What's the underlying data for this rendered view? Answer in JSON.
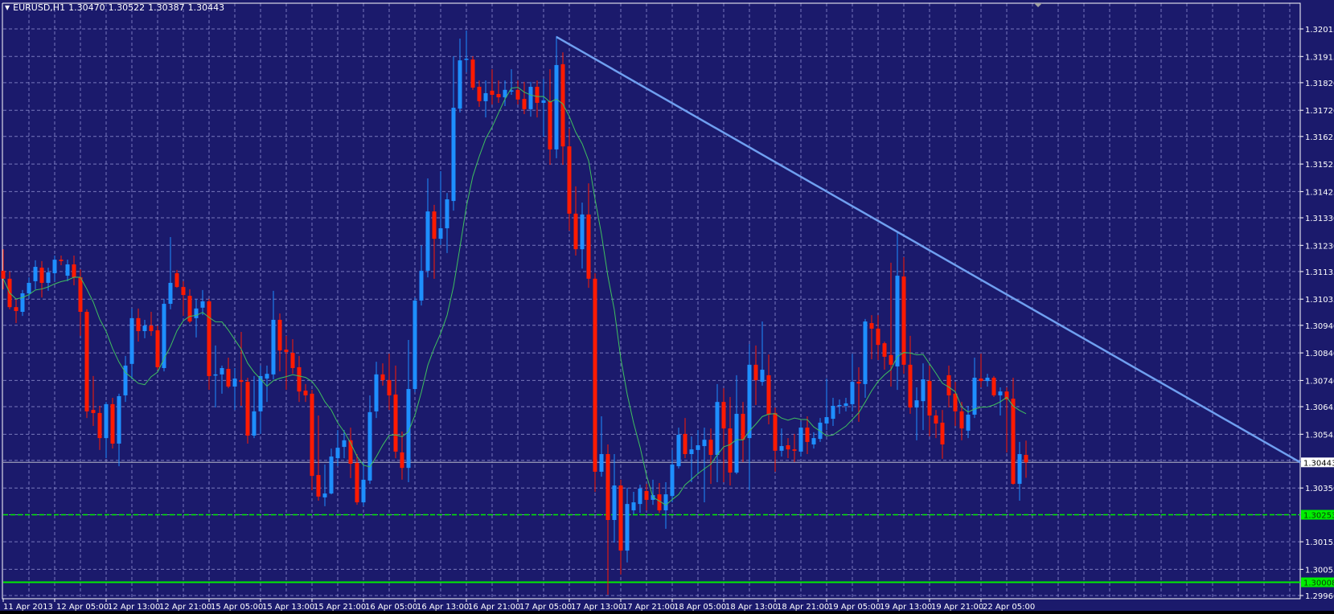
{
  "header": {
    "menu_icon": "triangle-down-icon",
    "symbol": "EURUSD,H1",
    "open": "1.30470",
    "high": "1.30522",
    "low": "1.30387",
    "close": "1.30443"
  },
  "colors": {
    "background": "#1b1a6c",
    "grid": "#8f8fcf",
    "bull": "#1e8fff",
    "bear": "#ff1a00",
    "moving_average": "#3fbf5f",
    "trendline": "#6f9ff0",
    "bid_line": "#b8b8c8",
    "level_line": "#00ee00",
    "axis": "#ffffff"
  },
  "chart_data": {
    "type": "candlestick",
    "symbol": "EURUSD",
    "timeframe": "H1",
    "grid": true,
    "ylim": [
      1.2996,
      1.32015
    ],
    "x_tick_labels": [
      "11 Apr 2013",
      "12 Apr 05:00",
      "12 Apr 13:00",
      "12 Apr 21:00",
      "15 Apr 05:00",
      "15 Apr 13:00",
      "15 Apr 21:00",
      "16 Apr 05:00",
      "16 Apr 13:00",
      "16 Apr 21:00",
      "17 Apr 05:00",
      "17 Apr 13:00",
      "17 Apr 21:00",
      "18 Apr 05:00",
      "18 Apr 13:00",
      "18 Apr 21:00",
      "19 Apr 05:00",
      "19 Apr 13:00",
      "19 Apr 21:00",
      "22 Apr 05:00"
    ],
    "y_tick_labels": [
      "1.32015",
      "1.31915",
      "1.31820",
      "1.31720",
      "1.31625",
      "1.31525",
      "1.31425",
      "1.31330",
      "1.31230",
      "1.31135",
      "1.31035",
      "1.30940",
      "1.30840",
      "1.30740",
      "1.30645",
      "1.30545",
      "1.30350",
      "1.30155",
      "1.30055",
      "1.29960"
    ],
    "candle_fields": [
      "open",
      "high",
      "low",
      "close"
    ],
    "candles": [
      [
        1.31138,
        1.31216,
        1.31071,
        1.31109
      ],
      [
        1.31109,
        1.31135,
        1.30998,
        1.31006
      ],
      [
        1.31006,
        1.31036,
        1.30948,
        1.30992
      ],
      [
        1.30989,
        1.31068,
        1.30974,
        1.31056
      ],
      [
        1.31056,
        1.31114,
        1.31036,
        1.31094
      ],
      [
        1.311,
        1.31176,
        1.31071,
        1.31152
      ],
      [
        1.31149,
        1.31173,
        1.31041,
        1.31094
      ],
      [
        1.31094,
        1.31149,
        1.31065,
        1.31132
      ],
      [
        1.31129,
        1.31193,
        1.311,
        1.31178
      ],
      [
        1.31178,
        1.31193,
        1.31158,
        1.31173
      ],
      [
        1.3112,
        1.31178,
        1.311,
        1.31161
      ],
      [
        1.31161,
        1.31193,
        1.31085,
        1.31114
      ],
      [
        1.31114,
        1.31143,
        1.30902,
        1.30989
      ],
      [
        1.30989,
        1.30998,
        1.30604,
        1.30628
      ],
      [
        1.30633,
        1.30756,
        1.30575,
        1.30622
      ],
      [
        1.30622,
        1.30648,
        1.30488,
        1.30531
      ],
      [
        1.30531,
        1.30662,
        1.30458,
        1.30654
      ],
      [
        1.30654,
        1.30677,
        1.30493,
        1.30511
      ],
      [
        1.30511,
        1.30692,
        1.30429,
        1.30683
      ],
      [
        1.30686,
        1.30829,
        1.30662,
        1.30794
      ],
      [
        1.308,
        1.31001,
        1.30744,
        1.30966
      ],
      [
        1.30966,
        1.31001,
        1.30881,
        1.30919
      ],
      [
        1.30919,
        1.3096,
        1.30893,
        1.30939
      ],
      [
        1.30939,
        1.30989,
        1.30902,
        1.30919
      ],
      [
        1.30922,
        1.30939,
        1.30779,
        1.30788
      ],
      [
        1.30785,
        1.31036,
        1.30773,
        1.31018
      ],
      [
        1.31018,
        1.3126,
        1.30998,
        1.31094
      ],
      [
        1.31129,
        1.31141,
        1.31076,
        1.31079
      ],
      [
        1.31079,
        1.311,
        1.30974,
        1.3105
      ],
      [
        1.31047,
        1.31071,
        1.30948,
        1.30954
      ],
      [
        1.30966,
        1.31036,
        1.30896,
        1.31001
      ],
      [
        1.31004,
        1.31068,
        1.30977,
        1.31027
      ],
      [
        1.31027,
        1.31036,
        1.30706,
        1.30756
      ],
      [
        1.30759,
        1.30867,
        1.30642,
        1.30762
      ],
      [
        1.30762,
        1.30794,
        1.30692,
        1.30785
      ],
      [
        1.30782,
        1.30823,
        1.30712,
        1.30718
      ],
      [
        1.30718,
        1.30785,
        1.30633,
        1.30747
      ],
      [
        1.30741,
        1.30916,
        1.30648,
        1.30735
      ],
      [
        1.30735,
        1.3075,
        1.30511,
        1.3054
      ],
      [
        1.3054,
        1.30756,
        1.30531,
        1.30628
      ],
      [
        1.30628,
        1.30794,
        1.30546,
        1.30756
      ],
      [
        1.30747,
        1.30794,
        1.30662,
        1.30764
      ],
      [
        1.30762,
        1.31065,
        1.30744,
        1.3096
      ],
      [
        1.3096,
        1.30983,
        1.30773,
        1.30849
      ],
      [
        1.30852,
        1.30902,
        1.30706,
        1.30843
      ],
      [
        1.3084,
        1.3089,
        1.30764,
        1.30785
      ],
      [
        1.30788,
        1.30829,
        1.30662,
        1.307
      ],
      [
        1.30703,
        1.30727,
        1.30662,
        1.30686
      ],
      [
        1.30692,
        1.30706,
        1.30342,
        1.30394
      ],
      [
        1.30397,
        1.30613,
        1.30304,
        1.30319
      ],
      [
        1.30316,
        1.30435,
        1.30284,
        1.3033
      ],
      [
        1.3033,
        1.30493,
        1.30327,
        1.30464
      ],
      [
        1.30458,
        1.3056,
        1.30429,
        1.30496
      ],
      [
        1.30499,
        1.3056,
        1.30458,
        1.30523
      ],
      [
        1.30523,
        1.30569,
        1.30386,
        1.30438
      ],
      [
        1.30441,
        1.30473,
        1.30289,
        1.30298
      ],
      [
        1.30298,
        1.30444,
        1.30284,
        1.3038
      ],
      [
        1.30377,
        1.30686,
        1.30365,
        1.30625
      ],
      [
        1.30628,
        1.30808,
        1.30604,
        1.30762
      ],
      [
        1.30762,
        1.30802,
        1.30721,
        1.30741
      ],
      [
        1.30741,
        1.30837,
        1.30633,
        1.30686
      ],
      [
        1.30689,
        1.30794,
        1.30458,
        1.30482
      ],
      [
        1.30479,
        1.30555,
        1.3038,
        1.30423
      ],
      [
        1.30423,
        1.30887,
        1.30371,
        1.30709
      ],
      [
        1.30709,
        1.31041,
        1.30697,
        1.3103
      ],
      [
        1.3103,
        1.31231,
        1.31012,
        1.31138
      ],
      [
        1.31138,
        1.31473,
        1.31114,
        1.31353
      ],
      [
        1.31353,
        1.31377,
        1.31109,
        1.31254
      ],
      [
        1.31254,
        1.31499,
        1.31231,
        1.31292
      ],
      [
        1.31292,
        1.3142,
        1.31202,
        1.31397
      ],
      [
        1.31391,
        1.31916,
        1.31356,
        1.31729
      ],
      [
        1.31726,
        1.3198,
        1.31712,
        1.31901
      ],
      [
        1.31904,
        1.32009,
        1.31858,
        1.31907
      ],
      [
        1.31904,
        1.31916,
        1.31794,
        1.31802
      ],
      [
        1.31805,
        1.31828,
        1.31732,
        1.31753
      ],
      [
        1.31753,
        1.31828,
        1.31694,
        1.31782
      ],
      [
        1.31791,
        1.31869,
        1.31741,
        1.31776
      ],
      [
        1.31779,
        1.31828,
        1.31747,
        1.31767
      ],
      [
        1.31767,
        1.31828,
        1.31735,
        1.31794
      ],
      [
        1.31791,
        1.31869,
        1.31776,
        1.31792
      ],
      [
        1.31794,
        1.31828,
        1.31741,
        1.31759
      ],
      [
        1.31761,
        1.31823,
        1.31706,
        1.31724
      ],
      [
        1.31724,
        1.31823,
        1.31697,
        1.31805
      ],
      [
        1.31805,
        1.31828,
        1.31694,
        1.31747
      ],
      [
        1.31747,
        1.31834,
        1.31624,
        1.31756
      ],
      [
        1.31753,
        1.31869,
        1.31522,
        1.31578
      ],
      [
        1.31578,
        1.31989,
        1.31546,
        1.31884
      ],
      [
        1.31887,
        1.3193,
        1.31522,
        1.31589
      ],
      [
        1.31589,
        1.31654,
        1.31283,
        1.31345
      ],
      [
        1.31345,
        1.31444,
        1.31193,
        1.31216
      ],
      [
        1.31216,
        1.31385,
        1.31146,
        1.31342
      ],
      [
        1.31342,
        1.31455,
        1.31076,
        1.31109
      ],
      [
        1.31109,
        1.31129,
        1.30336,
        1.30409
      ],
      [
        1.30409,
        1.3061,
        1.30391,
        1.30473
      ],
      [
        1.30473,
        1.30508,
        1.29963,
        1.30234
      ],
      [
        1.30234,
        1.30473,
        1.30152,
        1.30359
      ],
      [
        1.30359,
        1.3038,
        1.30036,
        1.30123
      ],
      [
        1.30123,
        1.30351,
        1.3008,
        1.30292
      ],
      [
        1.30269,
        1.30336,
        1.30254,
        1.30298
      ],
      [
        1.30292,
        1.30362,
        1.3026,
        1.30348
      ],
      [
        1.30339,
        1.30365,
        1.30269,
        1.30307
      ],
      [
        1.30307,
        1.3038,
        1.30289,
        1.30324
      ],
      [
        1.30327,
        1.30368,
        1.3026,
        1.30269
      ],
      [
        1.30269,
        1.30371,
        1.30202,
        1.30327
      ],
      [
        1.30321,
        1.30488,
        1.30298,
        1.30435
      ],
      [
        1.30429,
        1.30569,
        1.30421,
        1.30543
      ],
      [
        1.30546,
        1.30604,
        1.30458,
        1.30473
      ],
      [
        1.30473,
        1.30537,
        1.30371,
        1.3049
      ],
      [
        1.30488,
        1.3056,
        1.304,
        1.30505
      ],
      [
        1.30502,
        1.30569,
        1.30298,
        1.30525
      ],
      [
        1.30525,
        1.30566,
        1.30365,
        1.3047
      ],
      [
        1.3047,
        1.30727,
        1.30371,
        1.30662
      ],
      [
        1.30662,
        1.30712,
        1.30371,
        1.30566
      ],
      [
        1.30566,
        1.3068,
        1.30359,
        1.30406
      ],
      [
        1.30406,
        1.30759,
        1.304,
        1.30619
      ],
      [
        1.30619,
        1.30662,
        1.30444,
        1.30525
      ],
      [
        1.30531,
        1.30872,
        1.30342,
        1.30797
      ],
      [
        1.30797,
        1.30867,
        1.30651,
        1.30741
      ],
      [
        1.30735,
        1.30954,
        1.30721,
        1.30779
      ],
      [
        1.30759,
        1.30834,
        1.30581,
        1.30616
      ],
      [
        1.30622,
        1.30642,
        1.30409,
        1.30485
      ],
      [
        1.30485,
        1.30566,
        1.30464,
        1.30502
      ],
      [
        1.30505,
        1.30531,
        1.30458,
        1.3049
      ],
      [
        1.3049,
        1.30546,
        1.30444,
        1.30485
      ],
      [
        1.30482,
        1.3059,
        1.30464,
        1.30569
      ],
      [
        1.30569,
        1.3061,
        1.30473,
        1.30517
      ],
      [
        1.30508,
        1.30552,
        1.30493,
        1.30531
      ],
      [
        1.30528,
        1.30604,
        1.30517,
        1.30587
      ],
      [
        1.30584,
        1.30747,
        1.3056,
        1.30607
      ],
      [
        1.30601,
        1.30677,
        1.30575,
        1.30648
      ],
      [
        1.30648,
        1.30671,
        1.30619,
        1.30651
      ],
      [
        1.30648,
        1.30677,
        1.30628,
        1.30657
      ],
      [
        1.30654,
        1.30837,
        1.30628,
        1.30735
      ],
      [
        1.30735,
        1.30788,
        1.3059,
        1.30729
      ],
      [
        1.30727,
        1.30963,
        1.30677,
        1.30954
      ],
      [
        1.30948,
        1.30977,
        1.30817,
        1.30928
      ],
      [
        1.30928,
        1.30977,
        1.30814,
        1.30869
      ],
      [
        1.30875,
        1.30881,
        1.30779,
        1.30826
      ],
      [
        1.30832,
        1.31167,
        1.30718,
        1.30797
      ],
      [
        1.30791,
        1.31278,
        1.30706,
        1.3112
      ],
      [
        1.31117,
        1.31187,
        1.30764,
        1.30797
      ],
      [
        1.30797,
        1.30902,
        1.30619,
        1.30642
      ],
      [
        1.30642,
        1.30715,
        1.30523,
        1.30668
      ],
      [
        1.30665,
        1.30802,
        1.3056,
        1.30744
      ],
      [
        1.30738,
        1.30794,
        1.30537,
        1.30613
      ],
      [
        1.30613,
        1.30633,
        1.30531,
        1.30584
      ],
      [
        1.30587,
        1.30633,
        1.30456,
        1.30508
      ],
      [
        1.30759,
        1.30794,
        1.30642,
        1.30686
      ],
      [
        1.30692,
        1.30735,
        1.30575,
        1.30628
      ],
      [
        1.30628,
        1.30662,
        1.30523,
        1.30566
      ],
      [
        1.30558,
        1.30648,
        1.30531,
        1.30616
      ],
      [
        1.30616,
        1.30823,
        1.30604,
        1.3075
      ],
      [
        1.30747,
        1.30837,
        1.30715,
        1.30738
      ],
      [
        1.30738,
        1.30764,
        1.30718,
        1.3075
      ],
      [
        1.3075,
        1.30756,
        1.3068,
        1.30686
      ],
      [
        1.30686,
        1.30715,
        1.30613,
        1.307
      ],
      [
        1.307,
        1.30715,
        1.30479,
        1.30671
      ],
      [
        1.30674,
        1.3075,
        1.30362,
        1.30365
      ],
      [
        1.30365,
        1.30517,
        1.30304,
        1.30473
      ],
      [
        1.3047,
        1.30522,
        1.30387,
        1.30443
      ]
    ],
    "trendline": {
      "start": {
        "time": "17 Apr 11:00",
        "price": 1.31986
      },
      "end_price_at_right_edge": 1.30443
    },
    "horizontal_lines": [
      {
        "kind": "bid",
        "price": 1.30443,
        "label": "1.30443",
        "style": "solid"
      },
      {
        "kind": "level",
        "price": 1.30253,
        "label": "1.30253",
        "style": "dashed"
      },
      {
        "kind": "level",
        "price": 1.30008,
        "label": "1.30008",
        "style": "solid"
      }
    ]
  }
}
